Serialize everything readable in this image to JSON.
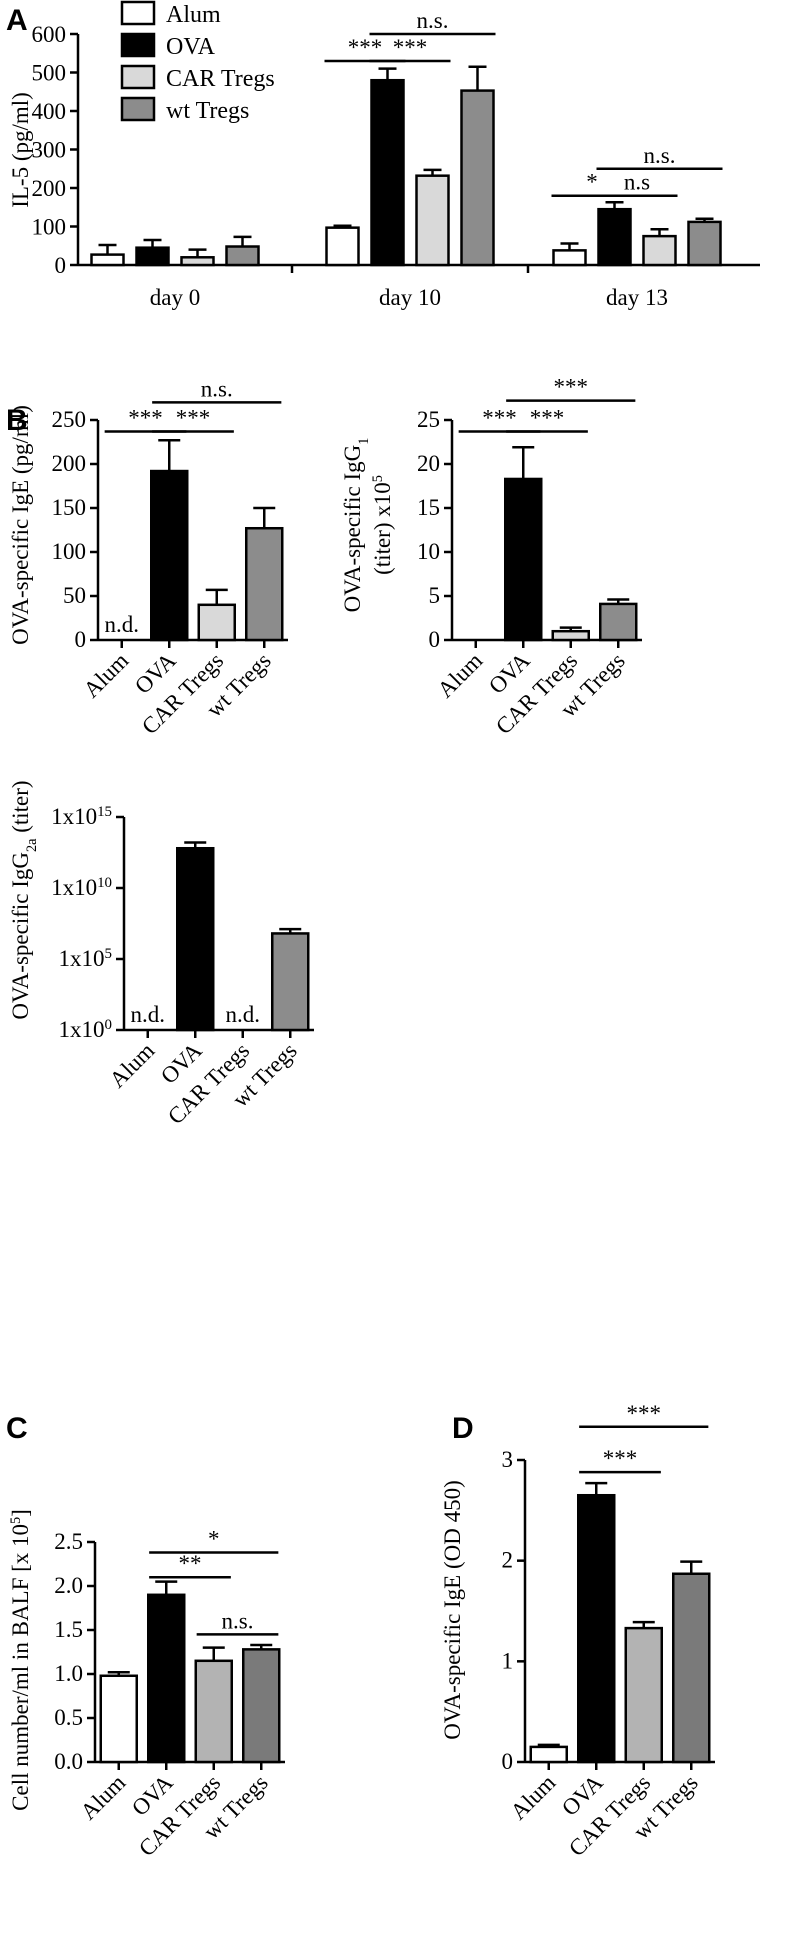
{
  "panel_labels": {
    "a": "A",
    "b": "B",
    "c": "C",
    "d": "D"
  },
  "chart_data": [
    {
      "id": "A",
      "type": "bar",
      "ylabel": "IL-5 (pg/ml)",
      "ylim": [
        0,
        600
      ],
      "yticks": [
        0,
        100,
        200,
        300,
        400,
        500,
        600
      ],
      "categories": [
        "day 0",
        "day 10",
        "day 13"
      ],
      "legend": {
        "placement": "top-left",
        "entries": [
          {
            "name": "Alum",
            "color": "#ffffff"
          },
          {
            "name": "OVA",
            "color": "#000000"
          },
          {
            "name": "CAR Tregs",
            "color": "#d9d9d9"
          },
          {
            "name": "wt Tregs",
            "color": "#8c8c8c"
          }
        ]
      },
      "series": [
        {
          "name": "Alum",
          "color": "#ffffff",
          "values": [
            27,
            97,
            38
          ],
          "errors": [
            25,
            5,
            18
          ]
        },
        {
          "name": "OVA",
          "color": "#000000",
          "values": [
            45,
            480,
            145
          ],
          "errors": [
            20,
            30,
            18
          ]
        },
        {
          "name": "CAR Tregs",
          "color": "#d9d9d9",
          "values": [
            20,
            232,
            75
          ],
          "errors": [
            20,
            15,
            18
          ]
        },
        {
          "name": "wt Tregs",
          "color": "#8c8c8c",
          "values": [
            48,
            453,
            112
          ],
          "errors": [
            25,
            62,
            8
          ]
        }
      ],
      "significance": [
        {
          "group": 1,
          "from": 0,
          "to": 1,
          "label": "***",
          "y": 530
        },
        {
          "group": 1,
          "from": 1,
          "to": 2,
          "label": "***",
          "y": 530
        },
        {
          "group": 1,
          "from": 1,
          "to": 3,
          "label": "n.s.",
          "y": 600
        },
        {
          "group": 2,
          "from": 0,
          "to": 1,
          "label": "*",
          "y": 180
        },
        {
          "group": 2,
          "from": 1,
          "to": 2,
          "label": "n.s",
          "y": 180
        },
        {
          "group": 2,
          "from": 1,
          "to": 3,
          "label": "n.s.",
          "y": 250
        }
      ]
    },
    {
      "id": "B1",
      "type": "bar",
      "ylabel": "OVA-specific IgE (pg/ml)",
      "ylim": [
        0,
        250
      ],
      "yticks": [
        0,
        50,
        100,
        150,
        200,
        250
      ],
      "categories": [
        "Alum",
        "OVA",
        "CAR Tregs",
        "wt Tregs"
      ],
      "colors": [
        "#ffffff",
        "#000000",
        "#d9d9d9",
        "#8c8c8c"
      ],
      "values": [
        0,
        192,
        40,
        127
      ],
      "errors": [
        0,
        35,
        17,
        23
      ],
      "notes": [
        "n.d.",
        "",
        "",
        ""
      ],
      "significance": [
        {
          "from": 0,
          "to": 1,
          "label": "***",
          "y": 237
        },
        {
          "from": 1,
          "to": 2,
          "label": "***",
          "y": 237
        },
        {
          "from": 1,
          "to": 3,
          "label": "n.s.",
          "y": 270
        }
      ]
    },
    {
      "id": "B2",
      "type": "bar",
      "ylabel_line1": "OVA-specific IgG",
      "ylabel_sub": "1",
      "ylabel_line2": "(titer) x10",
      "ylabel_sup": "5",
      "ylim": [
        0,
        25
      ],
      "yticks": [
        0,
        5,
        10,
        15,
        20,
        25
      ],
      "categories": [
        "Alum",
        "OVA",
        "CAR Tregs",
        "wt Tregs"
      ],
      "colors": [
        "#ffffff",
        "#000000",
        "#d9d9d9",
        "#8c8c8c"
      ],
      "values": [
        0,
        18.3,
        1.0,
        4.1
      ],
      "errors": [
        0,
        3.6,
        0.4,
        0.5
      ],
      "significance": [
        {
          "from": 0,
          "to": 1,
          "label": "***",
          "y": 23.7
        },
        {
          "from": 1,
          "to": 2,
          "label": "***",
          "y": 23.7
        },
        {
          "from": 1,
          "to": 3,
          "label": "***",
          "y": 27.2
        }
      ]
    },
    {
      "id": "B3",
      "type": "bar",
      "scale": "log",
      "ylabel": "OVA-specific IgG",
      "ylabel_sub": "2a",
      "ylabel_tail": " (titer)",
      "ylim_exponent": [
        0,
        15
      ],
      "ytick_base": "1x10",
      "yticks_exponent": [
        "0",
        "5",
        "10",
        "15"
      ],
      "categories": [
        "Alum",
        "OVA",
        "CAR Tregs",
        "wt Tregs"
      ],
      "colors": [
        "#ffffff",
        "#000000",
        "#d9d9d9",
        "#8c8c8c"
      ],
      "values_exponent": [
        0,
        12.8,
        0,
        6.8
      ],
      "errors_exponent": [
        0,
        0.4,
        0,
        0.3
      ],
      "notes": [
        "n.d.",
        "",
        "n.d.",
        ""
      ]
    },
    {
      "id": "C",
      "type": "bar",
      "ylabel": "Cell number/ml in BALF [x 10",
      "ylabel_sup": "5",
      "ylabel_tail": "]",
      "ylim": [
        0,
        2.5
      ],
      "yticks": [
        "0.0",
        "0.5",
        "1.0",
        "1.5",
        "2.0",
        "2.5"
      ],
      "categories": [
        "Alum",
        "OVA",
        "CAR Tregs",
        "wt Tregs"
      ],
      "colors": [
        "#ffffff",
        "#000000",
        "#b3b3b3",
        "#7a7a7a"
      ],
      "values": [
        0.98,
        1.9,
        1.15,
        1.28
      ],
      "errors": [
        0.04,
        0.15,
        0.15,
        0.05
      ],
      "significance": [
        {
          "from": 1,
          "to": 2,
          "label": "**",
          "y": 2.1
        },
        {
          "from": 1,
          "to": 3,
          "label": "*",
          "y": 2.38
        },
        {
          "from": 2,
          "to": 3,
          "label": "n.s.",
          "y": 1.45
        }
      ]
    },
    {
      "id": "D",
      "type": "bar",
      "ylabel": "OVA-specific IgE (OD 450)",
      "ylim": [
        0,
        3
      ],
      "yticks": [
        0,
        1,
        2,
        3
      ],
      "categories": [
        "Alum",
        "OVA",
        "CAR Tregs",
        "wt Tregs"
      ],
      "colors": [
        "#ffffff",
        "#000000",
        "#b3b3b3",
        "#7a7a7a"
      ],
      "values": [
        0.15,
        2.65,
        1.33,
        1.87
      ],
      "errors": [
        0.02,
        0.12,
        0.06,
        0.12
      ],
      "significance": [
        {
          "from": 1,
          "to": 2,
          "label": "***",
          "y": 2.88
        },
        {
          "from": 1,
          "to": 3,
          "label": "***",
          "y": 3.33
        }
      ]
    }
  ]
}
